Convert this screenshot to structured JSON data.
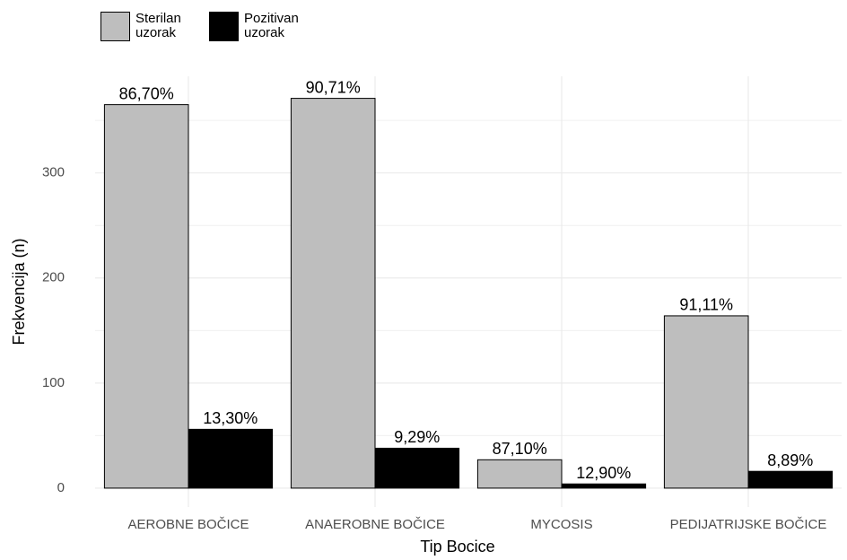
{
  "chart_data": {
    "type": "bar",
    "x_label": "Tip Bocice",
    "y_label": "Frekvencija (n)",
    "categories": [
      "AEROBNE BOČICE",
      "ANAEROBNE BOČICE",
      "MYCOSIS",
      "PEDIJATRIJSKE BOČICE"
    ],
    "series": [
      {
        "name": "Sterilan uzorak",
        "color": "#bebebe",
        "values": [
          365,
          371,
          27,
          164
        ],
        "value_labels": [
          "86,70%",
          "90,71%",
          "87,10%",
          "91,11%"
        ]
      },
      {
        "name": "Pozitivan uzorak",
        "color": "#000000",
        "values": [
          56,
          38,
          4,
          16
        ],
        "value_labels": [
          "13,30%",
          "9,29%",
          "12,90%",
          "8,89%"
        ]
      }
    ],
    "ylim": [
      -18,
      392
    ],
    "yticks": [
      0,
      100,
      200,
      300
    ],
    "minor_yticks": [
      50,
      150,
      250,
      350
    ],
    "grid": true,
    "legend": "top-left"
  }
}
